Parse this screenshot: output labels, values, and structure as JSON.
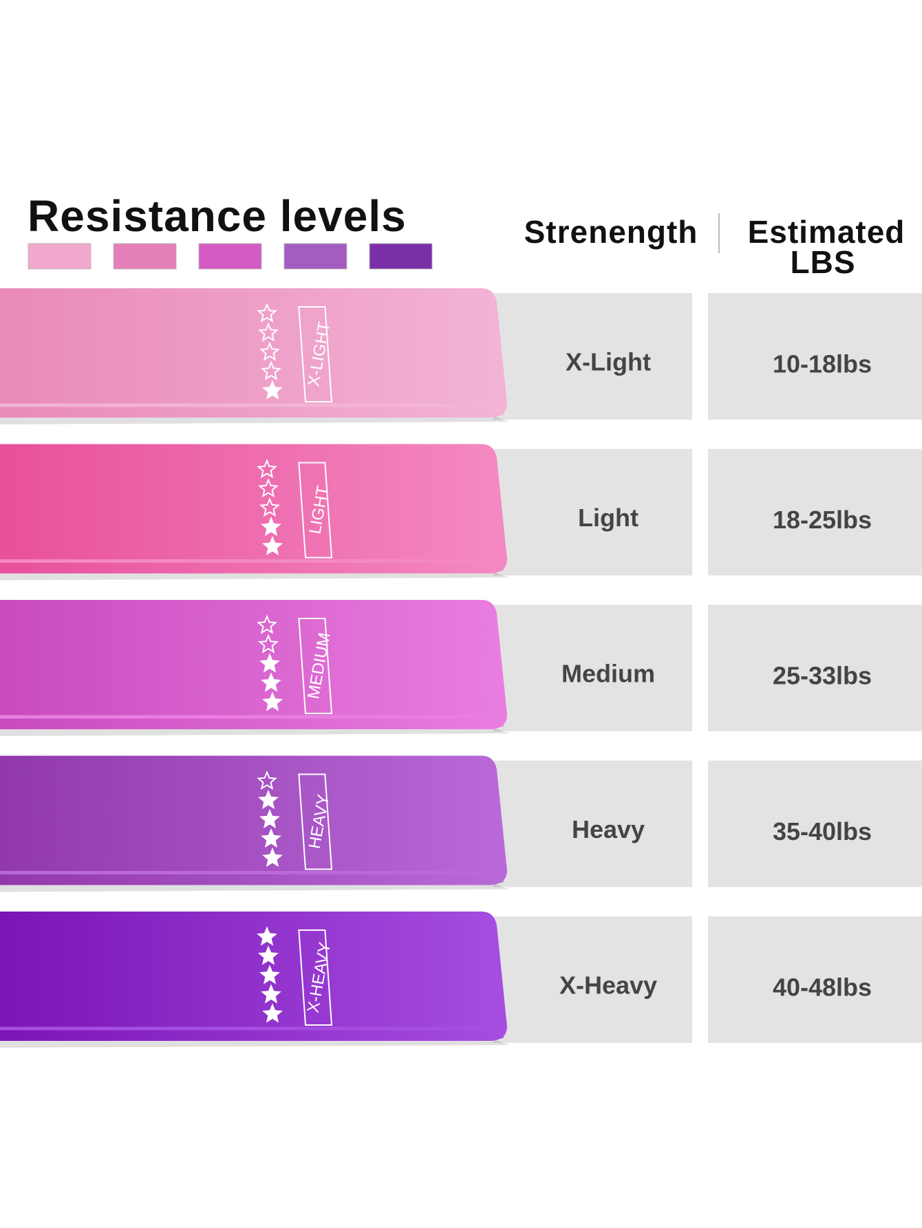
{
  "header": {
    "title": "Resistance levels",
    "strength_label": "Strenength",
    "estimated_label": "Estimated",
    "lbs_label": "LBS"
  },
  "swatches": [
    "#f0a8cc",
    "#e47fba",
    "#d45ac4",
    "#a35cbf",
    "#7a2fa6"
  ],
  "rows": [
    {
      "band_label": "X-LIGHT",
      "strength": "X-Light",
      "lbs": "10-18lbs",
      "filled_stars": 1,
      "color": "#e98ab8",
      "light": "#f3b4d6"
    },
    {
      "band_label": "LIGHT",
      "strength": "Light",
      "lbs": "18-25lbs",
      "filled_stars": 2,
      "color": "#e8509c",
      "light": "#f489c2"
    },
    {
      "band_label": "MEDIUM",
      "strength": "Medium",
      "lbs": "25-33lbs",
      "filled_stars": 3,
      "color": "#c84bbf",
      "light": "#ea7ee0"
    },
    {
      "band_label": "HEAVY",
      "strength": "Heavy",
      "lbs": "35-40lbs",
      "filled_stars": 4,
      "color": "#9138ad",
      "light": "#b96ad8"
    },
    {
      "band_label": "X-HEAVY",
      "strength": "X-Heavy",
      "lbs": "40-48lbs",
      "filled_stars": 5,
      "color": "#7c14b6",
      "light": "#a54ee0"
    }
  ]
}
